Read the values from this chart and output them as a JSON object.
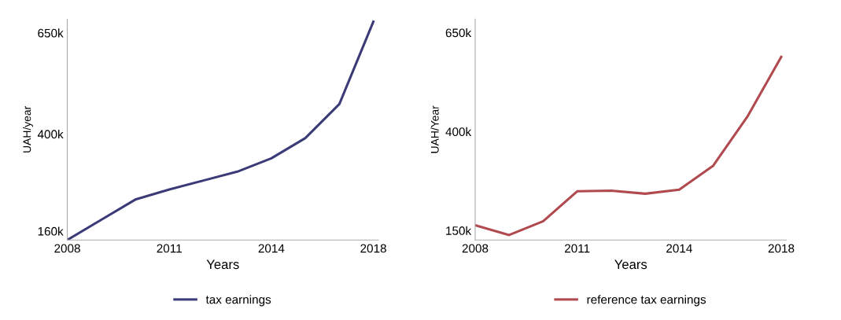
{
  "chart_data": [
    {
      "type": "line",
      "xlabel": "Years",
      "ylabel": "UAH/year",
      "categories": [
        "2008",
        null,
        null,
        "2011",
        null,
        null,
        "2014",
        null,
        null,
        "2018"
      ],
      "series": [
        {
          "name": "tax earnings",
          "color": "#3b3b78",
          "values": [
            138000,
            188000,
            238000,
            263000,
            285000,
            307000,
            340000,
            390000,
            474000,
            678000
          ]
        }
      ],
      "ylim": [
        138000,
        684000
      ],
      "yticks": [
        {
          "value": 160000,
          "label": "160k"
        },
        {
          "value": 400000,
          "label": "400k"
        },
        {
          "value": 650000,
          "label": "650k"
        }
      ],
      "grid": false,
      "legend": "bottom"
    },
    {
      "type": "line",
      "xlabel": "Years",
      "ylabel": "UAH/Year",
      "categories": [
        "2008",
        null,
        null,
        "2011",
        null,
        null,
        "2014",
        null,
        null,
        "2018"
      ],
      "series": [
        {
          "name": "reference tax earnings",
          "color": "#b04a4f",
          "values": [
            163500,
            138500,
            173600,
            249000,
            250700,
            243000,
            253000,
            314000,
            437000,
            589000
          ]
        }
      ],
      "ylim": [
        126000,
        684000
      ],
      "yticks": [
        {
          "value": 150000,
          "label": "150k"
        },
        {
          "value": 400000,
          "label": "400k"
        },
        {
          "value": 650000,
          "label": "650k"
        }
      ],
      "grid": false,
      "legend": "bottom"
    }
  ]
}
